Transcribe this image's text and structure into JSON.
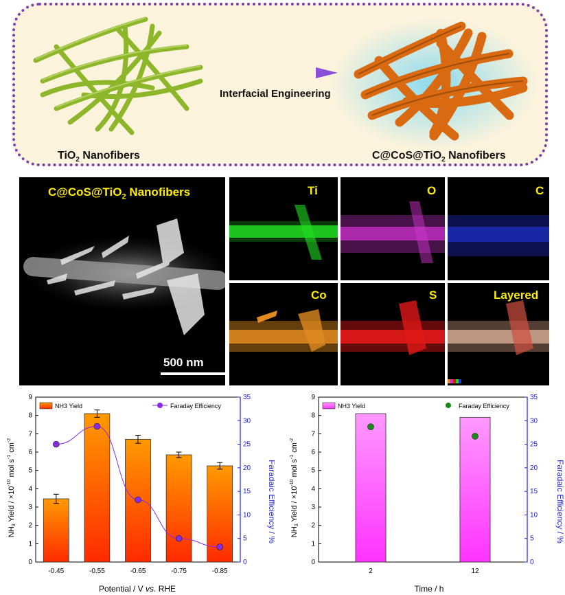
{
  "schematic": {
    "left_label": "TiO",
    "left_label_sub": "2",
    "left_label_suffix": " Nanofibers",
    "right_label": "C@CoS@TiO",
    "right_label_sub": "2",
    "right_label_suffix": " Nanofibers",
    "arrow_label": "Interfacial Engineering",
    "colors": {
      "border": "#7b3fa8",
      "background": "#fbf3dc",
      "fiber": "#8db62b",
      "coated_fiber": "#e07a1c",
      "arrow": "#9a5fd6"
    }
  },
  "micro": {
    "title": "C@CoS@TiO",
    "title_sub": "2",
    "title_suffix": "  Nanofibers",
    "scale_bar": "500 nm",
    "maps": [
      {
        "label": "Ti",
        "color": "#22dd22"
      },
      {
        "label": "O",
        "color": "#cc33cc"
      },
      {
        "label": "C",
        "color": "#2233dd"
      },
      {
        "label": "Co",
        "color": "#e08a20"
      },
      {
        "label": "S",
        "color": "#e01818"
      },
      {
        "label": "Layered",
        "color": "#b58a70"
      }
    ]
  },
  "chart_data": [
    {
      "type": "bar",
      "categories": [
        "-0.45",
        "-0.55",
        "-0.65",
        "-0.75",
        "-0.85"
      ],
      "series": [
        {
          "name": "NH3 Yield",
          "values": [
            3.45,
            8.1,
            6.7,
            5.85,
            5.25
          ],
          "errors": [
            0.25,
            0.2,
            0.22,
            0.15,
            0.18
          ],
          "axis": "left",
          "color": "#f04a10"
        },
        {
          "name": "Faraday Efficiency",
          "type": "line",
          "values": [
            25.0,
            28.8,
            13.2,
            5.0,
            3.2
          ],
          "axis": "right",
          "color": "#8a2be2"
        }
      ],
      "xlabel": "Potential / V vs. RHE",
      "xlabel_main": "Potential / V ",
      "xlabel_italic": "vs.",
      "xlabel_end": " RHE",
      "ylabel": "NH3 Yield / ×10-10 mol s-1 cm-2",
      "y2label": "Faradaic Efficiency / %",
      "ylim": [
        0,
        9
      ],
      "y2lim": [
        0,
        35
      ],
      "yticks": [
        "0",
        "1",
        "2",
        "3",
        "4",
        "5",
        "6",
        "7",
        "8",
        "9"
      ],
      "y2ticks": [
        "0",
        "5",
        "10",
        "15",
        "20",
        "25",
        "30",
        "35"
      ],
      "legend": [
        "NH3 Yield",
        "Faraday Efficiency"
      ],
      "legend_position": "top"
    },
    {
      "type": "bar",
      "categories": [
        "2",
        "12"
      ],
      "series": [
        {
          "name": "NH3 Yield",
          "values": [
            8.1,
            7.9
          ],
          "axis": "left",
          "color": "#ee44ee"
        },
        {
          "name": "Faraday Efficiency",
          "type": "scatter",
          "values": [
            28.7,
            26.7
          ],
          "axis": "right",
          "color": "#1a8a1a"
        }
      ],
      "xlabel": "Time / h",
      "ylabel": "NH3 Yield / ×10-10 mol s-1 cm-2",
      "y2label": "Faradaic Efficiency / %",
      "ylim": [
        0,
        9
      ],
      "y2lim": [
        0,
        35
      ],
      "yticks": [
        "0",
        "1",
        "2",
        "3",
        "4",
        "5",
        "6",
        "7",
        "8",
        "9"
      ],
      "y2ticks": [
        "0",
        "5",
        "10",
        "15",
        "20",
        "25",
        "30",
        "35"
      ],
      "legend": [
        "NH3 Yield",
        "Faraday Efficiency"
      ],
      "legend_position": "top"
    }
  ]
}
